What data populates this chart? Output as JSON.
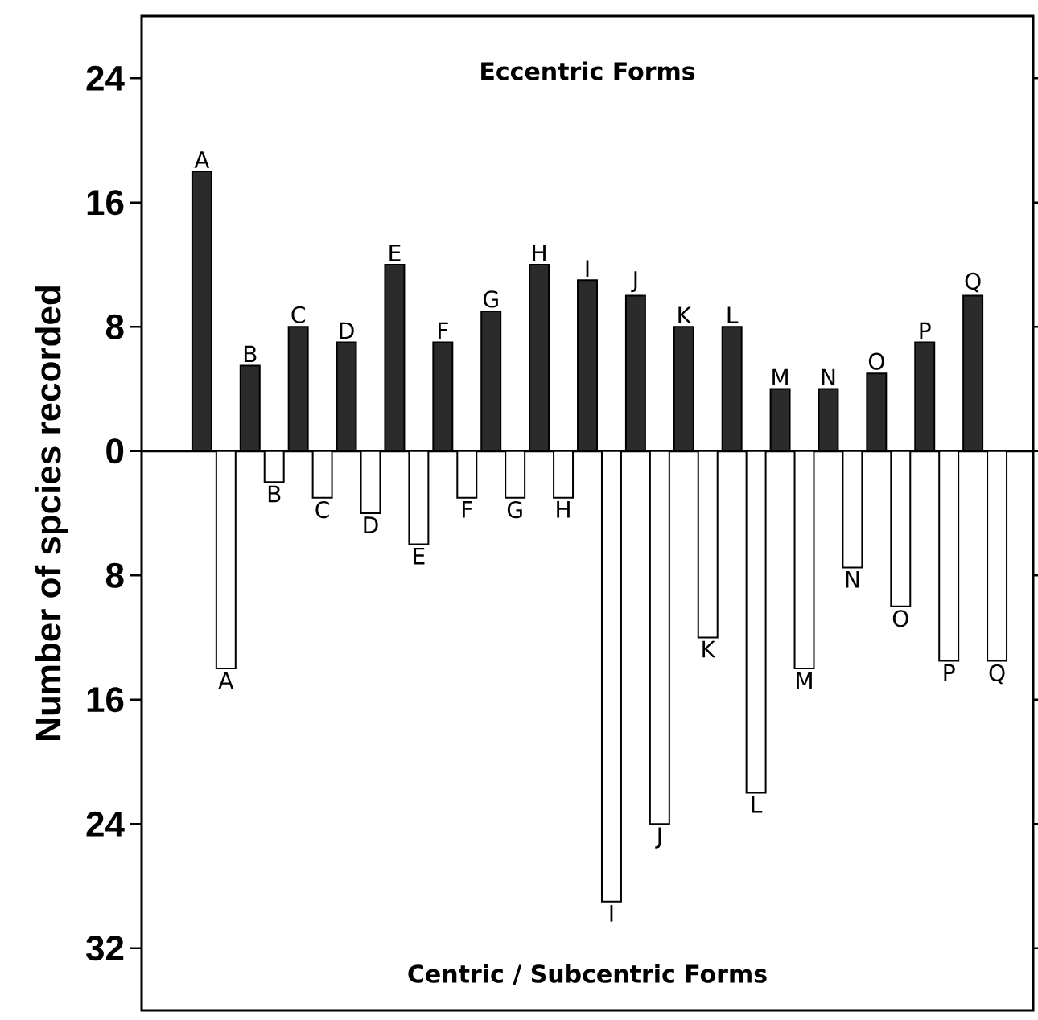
{
  "chart_data": {
    "type": "bar",
    "ylabel": "Number of spcies recorded",
    "categories": [
      "A",
      "B",
      "C",
      "D",
      "E",
      "F",
      "G",
      "H",
      "I",
      "J",
      "K",
      "L",
      "M",
      "N",
      "O",
      "P",
      "Q"
    ],
    "series": [
      {
        "color": "#2b2b2b",
        "values": [
          18,
          5.5,
          8,
          7,
          12,
          7,
          9,
          12,
          11,
          10,
          8,
          8,
          4,
          4,
          5,
          7,
          10
        ]
      },
      {
        "color": "#ffffff",
        "values": [
          -14,
          -2,
          -3,
          -4,
          -6,
          -3,
          -3,
          -3,
          -29,
          -24,
          -12,
          -22,
          -14,
          -7.5,
          -10,
          -13.5,
          -13.5
        ]
      }
    ],
    "ylim": [
      -36,
      28
    ],
    "yticks": [
      24,
      16,
      8,
      0,
      {
        "value": -8,
        "label": "8"
      },
      {
        "value": -16,
        "label": "16"
      },
      {
        "value": -24,
        "label": "24"
      },
      {
        "value": -32,
        "label": "32"
      }
    ],
    "annotations": [
      "Eccentric Forms",
      "Centric / Subcentric Forms"
    ],
    "tick_labels": "y",
    "grid": false
  }
}
